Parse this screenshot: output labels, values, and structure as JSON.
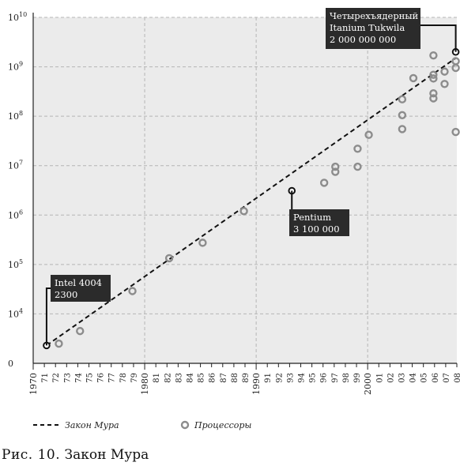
{
  "figure_caption": {
    "label": "Рис. 10.",
    "title": "Закон Мура"
  },
  "colors": {
    "plot_background": "#ebebeb",
    "grid": "#b5b5b5",
    "marker": "#8c8c8c",
    "callout_bg": "#2b2b2b",
    "line": "#111111"
  },
  "chart_data": {
    "type": "scatter",
    "y_scale": "log",
    "xlim": [
      1970,
      2008
    ],
    "ylim": [
      1000,
      10000000000
    ],
    "grid": true,
    "legend_placement": "bottom",
    "y_tick_labels": [
      {
        "value": 1000,
        "base": "0",
        "exp": ""
      },
      {
        "value": 10000,
        "base": "10",
        "exp": "4"
      },
      {
        "value": 100000,
        "base": "10",
        "exp": "5"
      },
      {
        "value": 1000000,
        "base": "10",
        "exp": "6"
      },
      {
        "value": 10000000,
        "base": "10",
        "exp": "7"
      },
      {
        "value": 100000000,
        "base": "10",
        "exp": "8"
      },
      {
        "value": 1000000000,
        "base": "10",
        "exp": "9"
      },
      {
        "value": 10000000000,
        "base": "10",
        "exp": "10"
      }
    ],
    "x_tick_labels": [
      {
        "value": 1970,
        "label": "1970",
        "major": true
      },
      {
        "value": 1971,
        "label": "71"
      },
      {
        "value": 1972,
        "label": "72"
      },
      {
        "value": 1973,
        "label": "73"
      },
      {
        "value": 1974,
        "label": "74"
      },
      {
        "value": 1975,
        "label": "75"
      },
      {
        "value": 1976,
        "label": "76"
      },
      {
        "value": 1977,
        "label": "77"
      },
      {
        "value": 1978,
        "label": "78"
      },
      {
        "value": 1979,
        "label": "79"
      },
      {
        "value": 1980,
        "label": "1980",
        "major": true
      },
      {
        "value": 1981,
        "label": "81"
      },
      {
        "value": 1982,
        "label": "82"
      },
      {
        "value": 1983,
        "label": "83"
      },
      {
        "value": 1984,
        "label": "84"
      },
      {
        "value": 1985,
        "label": "85"
      },
      {
        "value": 1986,
        "label": "86"
      },
      {
        "value": 1987,
        "label": "87"
      },
      {
        "value": 1988,
        "label": "88"
      },
      {
        "value": 1989,
        "label": "89"
      },
      {
        "value": 1990,
        "label": "1990",
        "major": true
      },
      {
        "value": 1991,
        "label": "91"
      },
      {
        "value": 1992,
        "label": "92"
      },
      {
        "value": 1993,
        "label": "93"
      },
      {
        "value": 1994,
        "label": "94"
      },
      {
        "value": 1995,
        "label": "95"
      },
      {
        "value": 1996,
        "label": "96"
      },
      {
        "value": 1997,
        "label": "97"
      },
      {
        "value": 1998,
        "label": "98"
      },
      {
        "value": 1999,
        "label": "99"
      },
      {
        "value": 2000,
        "label": "2000",
        "major": true
      },
      {
        "value": 2001,
        "label": "01"
      },
      {
        "value": 2002,
        "label": "02"
      },
      {
        "value": 2003,
        "label": "03"
      },
      {
        "value": 2004,
        "label": "04"
      },
      {
        "value": 2005,
        "label": "05"
      },
      {
        "value": 2006,
        "label": "06"
      },
      {
        "value": 2007,
        "label": "07"
      },
      {
        "value": 2008,
        "label": "08"
      }
    ],
    "series": [
      {
        "name": "Процессоры",
        "kind": "scatter",
        "points": [
          {
            "x": 1971.2,
            "y": 2300
          },
          {
            "x": 1972.3,
            "y": 2500
          },
          {
            "x": 1974.2,
            "y": 4500
          },
          {
            "x": 1978.9,
            "y": 29000
          },
          {
            "x": 1982.2,
            "y": 134000
          },
          {
            "x": 1985.2,
            "y": 275000
          },
          {
            "x": 1988.9,
            "y": 1200000
          },
          {
            "x": 1993.2,
            "y": 3100000
          },
          {
            "x": 1996.1,
            "y": 4500000
          },
          {
            "x": 1997.1,
            "y": 7500000
          },
          {
            "x": 1997.1,
            "y": 9500000
          },
          {
            "x": 1999.1,
            "y": 9500000
          },
          {
            "x": 1999.1,
            "y": 22000000
          },
          {
            "x": 2000.1,
            "y": 42000000
          },
          {
            "x": 2003.1,
            "y": 55000000
          },
          {
            "x": 2003.1,
            "y": 105000000
          },
          {
            "x": 2003.1,
            "y": 220000000
          },
          {
            "x": 2004.1,
            "y": 590000000
          },
          {
            "x": 2005.9,
            "y": 230000000
          },
          {
            "x": 2005.9,
            "y": 290000000
          },
          {
            "x": 2005.9,
            "y": 580000000
          },
          {
            "x": 2005.9,
            "y": 690000000
          },
          {
            "x": 2005.9,
            "y": 1700000000
          },
          {
            "x": 2006.9,
            "y": 450000000
          },
          {
            "x": 2006.9,
            "y": 800000000
          },
          {
            "x": 2007.9,
            "y": 48000000
          },
          {
            "x": 2007.9,
            "y": 950000000
          },
          {
            "x": 2007.9,
            "y": 1300000000
          },
          {
            "x": 2007.9,
            "y": 2000000000
          }
        ]
      },
      {
        "name": "Закон Мура",
        "kind": "line",
        "points": [
          {
            "x": 1971.2,
            "y": 2300
          },
          {
            "x": 2007.9,
            "y": 1500000000
          }
        ]
      }
    ],
    "annotations": [
      {
        "x": 1971.2,
        "y": 2300,
        "lines": [
          "Intel 4004",
          "2300"
        ]
      },
      {
        "x": 1993.2,
        "y": 3100000,
        "lines": [
          "Pentium",
          "3 100 000"
        ]
      },
      {
        "x": 2007.9,
        "y": 2000000000,
        "lines": [
          "Четырехъядерный",
          "Itanium Tukwila",
          "2 000 000 000"
        ]
      }
    ]
  }
}
